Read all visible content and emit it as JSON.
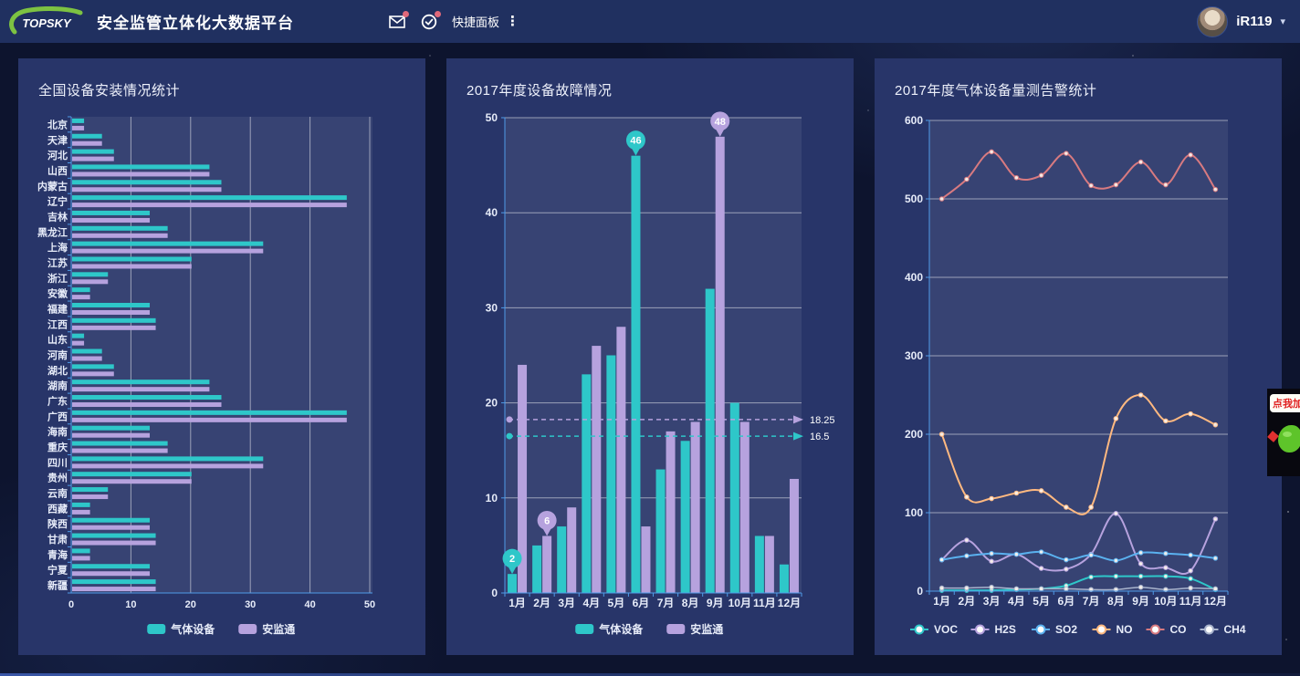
{
  "header": {
    "logo_text": "TOPSKY",
    "app_title": "安全监管立体化大数据平台",
    "quick_panel_label": "快捷面板",
    "username": "iR119",
    "badge_color": "#e0697a"
  },
  "promo_widget": {
    "bubble_text": "点我加"
  },
  "colors": {
    "teal": "#2ec7c9",
    "purple": "#b6a2de",
    "blue": "#5ab1ef",
    "light_orange": "#ffb980",
    "salmon": "#d87a80",
    "gray": "#a9b4cd",
    "axis": "#4f9be8",
    "gridline": "rgba(255,255,255,0.5)"
  },
  "chart_data": [
    {
      "type": "bar",
      "orientation": "horizontal",
      "title": "全国设备安装情况统计",
      "categories": [
        "北京",
        "天津",
        "河北",
        "山西",
        "内蒙古",
        "辽宁",
        "吉林",
        "黑龙江",
        "上海",
        "江苏",
        "浙江",
        "安徽",
        "福建",
        "江西",
        "山东",
        "河南",
        "湖北",
        "湖南",
        "广东",
        "广西",
        "海南",
        "重庆",
        "四川",
        "贵州",
        "云南",
        "西藏",
        "陕西",
        "甘肃",
        "青海",
        "宁夏",
        "新疆"
      ],
      "series": [
        {
          "name": "气体设备",
          "color": "#2ec7c9",
          "values": [
            2,
            5,
            7,
            23,
            25,
            46,
            13,
            16,
            32,
            20,
            6,
            3,
            13,
            14,
            2,
            5,
            7,
            23,
            25,
            46,
            13,
            16,
            32,
            20,
            6,
            3,
            13,
            14,
            3,
            13,
            14
          ]
        },
        {
          "name": "安监通",
          "color": "#b6a2de",
          "values": [
            2,
            5,
            7,
            23,
            25,
            46,
            13,
            16,
            32,
            20,
            6,
            3,
            13,
            14,
            2,
            5,
            7,
            23,
            25,
            46,
            13,
            16,
            32,
            20,
            6,
            3,
            13,
            14,
            3,
            13,
            14
          ]
        }
      ],
      "xlim": [
        0,
        50
      ],
      "xticks": [
        0,
        10,
        20,
        30,
        40,
        50
      ],
      "legend_position": "bottom",
      "grid": true
    },
    {
      "type": "bar",
      "orientation": "vertical",
      "title": "2017年度设备故障情况",
      "categories": [
        "1月",
        "2月",
        "3月",
        "4月",
        "5月",
        "6月",
        "7月",
        "8月",
        "9月",
        "10月",
        "11月",
        "12月"
      ],
      "series": [
        {
          "name": "气体设备",
          "color": "#2ec7c9",
          "values": [
            2,
            5,
            7,
            23,
            25,
            46,
            13,
            16,
            32,
            20,
            6,
            3
          ]
        },
        {
          "name": "安监通",
          "color": "#b6a2de",
          "values": [
            24,
            6,
            9,
            26,
            28,
            7,
            17,
            18,
            48,
            18,
            6,
            12
          ]
        }
      ],
      "ylim": [
        0,
        50
      ],
      "yticks": [
        0,
        10,
        20,
        30,
        40,
        50
      ],
      "pins": [
        {
          "series_index": 0,
          "category_index": 0,
          "value": 2,
          "label": "2"
        },
        {
          "series_index": 1,
          "category_index": 1,
          "value": 6,
          "label": "6"
        },
        {
          "series_index": 0,
          "category_index": 5,
          "value": 46,
          "label": "46"
        },
        {
          "series_index": 1,
          "category_index": 8,
          "value": 48,
          "label": "48"
        }
      ],
      "average_lines": [
        {
          "series_index": 1,
          "value": 18.25,
          "label": "18.25"
        },
        {
          "series_index": 0,
          "value": 16.5,
          "label": "16.5"
        }
      ],
      "legend_position": "bottom",
      "grid": true
    },
    {
      "type": "line",
      "title": "2017年度气体设备量测告警统计",
      "categories": [
        "1月",
        "2月",
        "3月",
        "4月",
        "5月",
        "6月",
        "7月",
        "8月",
        "9月",
        "10月",
        "11月",
        "12月"
      ],
      "series": [
        {
          "name": "VOC",
          "color": "#2ec7c9",
          "values": [
            1,
            1,
            1,
            2,
            3,
            7,
            18,
            19,
            19,
            19,
            16,
            2
          ]
        },
        {
          "name": "H2S",
          "color": "#b6a2de",
          "values": [
            40,
            65,
            38,
            47,
            29,
            28,
            47,
            99,
            35,
            30,
            26,
            92
          ]
        },
        {
          "name": "SO2",
          "color": "#5ab1ef",
          "values": [
            40,
            45,
            48,
            47,
            50,
            40,
            46,
            39,
            49,
            48,
            46,
            42
          ]
        },
        {
          "name": "NO",
          "color": "#ffb980",
          "values": [
            200,
            120,
            118,
            125,
            128,
            107,
            107,
            220,
            250,
            217,
            226,
            212
          ]
        },
        {
          "name": "CO",
          "color": "#d87a80",
          "values": [
            500,
            525,
            560,
            527,
            530,
            558,
            517,
            518,
            547,
            518,
            556,
            512
          ]
        },
        {
          "name": "CH4",
          "color": "#a9b4cd",
          "values": [
            4,
            4,
            5,
            3,
            3,
            3,
            2,
            2,
            5,
            2,
            4,
            3
          ]
        }
      ],
      "ylim": [
        0,
        600
      ],
      "yticks": [
        0,
        100,
        200,
        300,
        400,
        500,
        600
      ],
      "legend_position": "bottom",
      "grid": true
    }
  ]
}
